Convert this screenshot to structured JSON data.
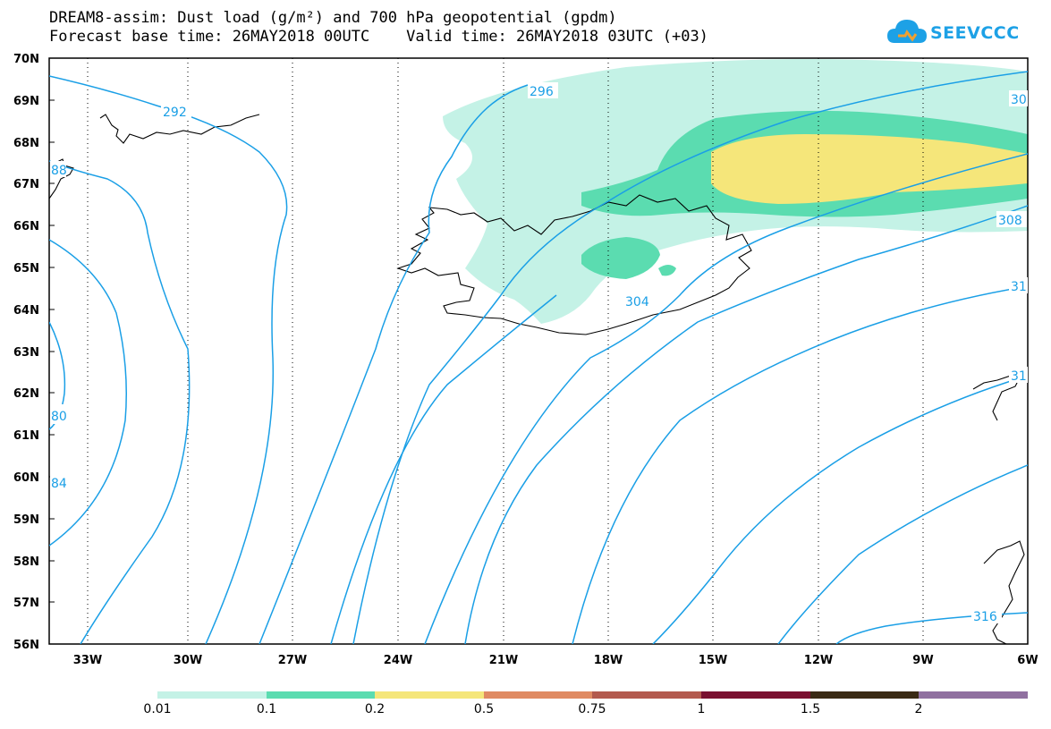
{
  "header": {
    "title_line1": "DREAM8-assim: Dust load (g/m²) and 700 hPa geopotential (gpdm)",
    "title_line2": "Forecast base time: 26MAY2018 00UTC    Valid time: 26MAY2018 03UTC (+03)",
    "logo_text": "SEEVCCC"
  },
  "map": {
    "lat_labels": [
      "70N",
      "69N",
      "68N",
      "67N",
      "66N",
      "65N",
      "64N",
      "63N",
      "62N",
      "61N",
      "60N",
      "59N",
      "58N",
      "57N",
      "56N"
    ],
    "lon_labels": [
      "33W",
      "30W",
      "27W",
      "24W",
      "21W",
      "18W",
      "15W",
      "12W",
      "9W",
      "6W"
    ],
    "contour_labels": [
      "292",
      "296",
      "304",
      "308",
      "316",
      "88",
      "80",
      "84",
      "30",
      "31",
      "31"
    ],
    "contour_color": "#1a9fe6",
    "coastline_color": "#000000"
  },
  "colorbar": {
    "labels": [
      "0.01",
      "0.1",
      "0.2",
      "0.5",
      "0.75",
      "1",
      "1.5",
      "2"
    ],
    "colors": [
      "#c4f2e6",
      "#5bdcb0",
      "#f5e67a",
      "#e08a62",
      "#b35a4e",
      "#7a1030",
      "#3a2a14",
      "#9070a0"
    ]
  }
}
